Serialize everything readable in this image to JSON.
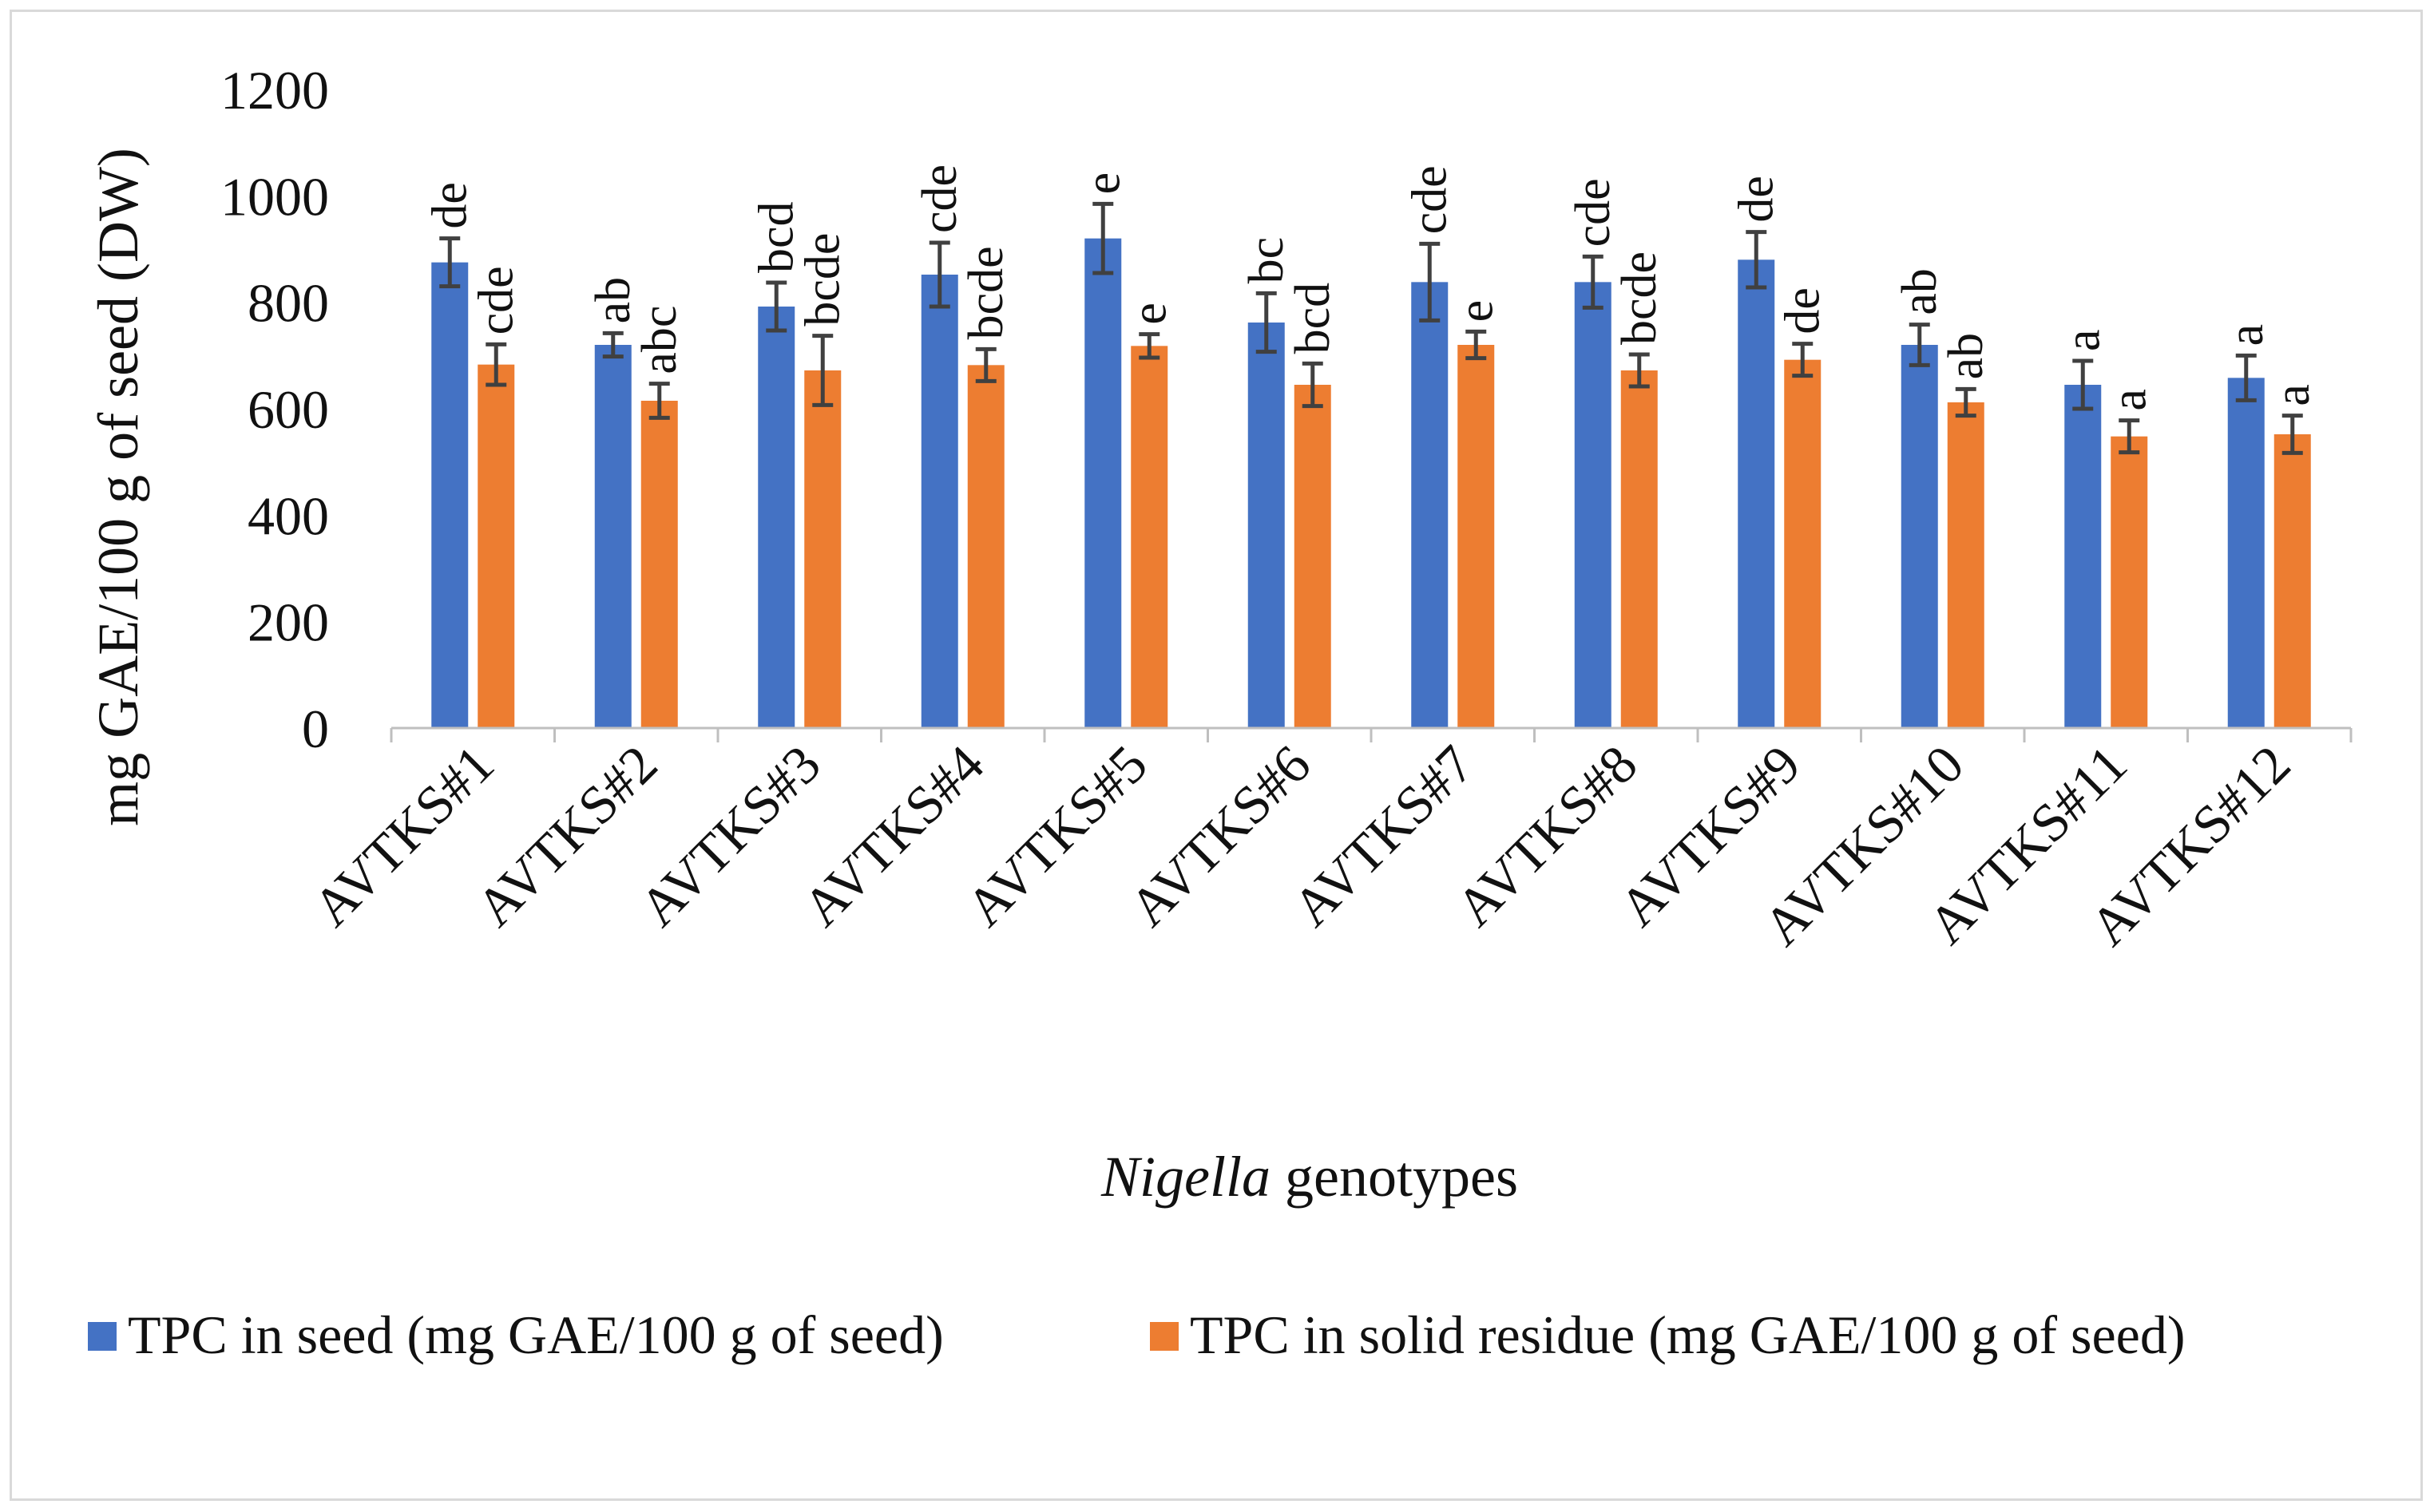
{
  "chart_data": {
    "type": "bar",
    "title": "",
    "xlabel_italic": "Nigella",
    "xlabel_rest": " genotypes",
    "ylabel": "mg GAE/100 g of seed (DW)",
    "ylim": [
      0,
      1200
    ],
    "yticks": [
      0,
      200,
      400,
      600,
      800,
      1000,
      1200
    ],
    "grid": false,
    "legend_position": "bottom",
    "categories": [
      "AVTKS#1",
      "AVTKS#2",
      "AVTKS#3",
      "AVTKS#4",
      "AVTKS#5",
      "AVTKS#6",
      "AVTKS#7",
      "AVTKS#8",
      "AVTKS#9",
      "AVTKS#10",
      "AVTKS#11",
      "AVTKS#12"
    ],
    "series": [
      {
        "name": "TPC in seed (mg GAE/100 g of seed)",
        "color": "#4472C4",
        "values": [
          875,
          720,
          792,
          852,
          920,
          762,
          838,
          838,
          880,
          720,
          645,
          658
        ],
        "errors": [
          45,
          22,
          45,
          60,
          65,
          55,
          72,
          48,
          52,
          38,
          45,
          42
        ],
        "letters": [
          "de",
          "ab",
          "bcd",
          "cde",
          "e",
          "bc",
          "cde",
          "cde",
          "de",
          "ab",
          "a",
          "a"
        ]
      },
      {
        "name": "TPC in solid residue (mg GAE/100 g of seed)",
        "color": "#ED7D31",
        "values": [
          683,
          615,
          672,
          682,
          718,
          645,
          720,
          672,
          692,
          612,
          548,
          552
        ],
        "errors": [
          38,
          32,
          65,
          30,
          22,
          40,
          25,
          30,
          30,
          25,
          30,
          35
        ],
        "letters": [
          "cde",
          "abc",
          "bcde",
          "bcde",
          "e",
          "bcd",
          "e",
          "bcde",
          "de",
          "ab",
          "a",
          "a"
        ]
      }
    ],
    "error_bar_color": "#404040",
    "axis_color": "#bfbfbf"
  }
}
